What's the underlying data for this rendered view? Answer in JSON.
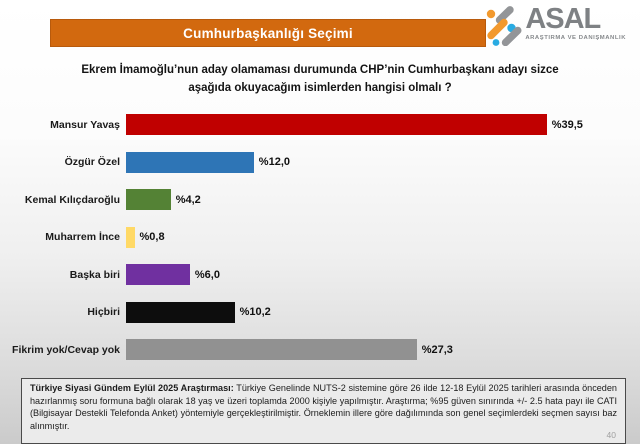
{
  "banner": {
    "title": "Cumhurbaşkanlığı Seçimi",
    "bg_color": "#d2690f"
  },
  "logo": {
    "name": "ASAL",
    "subtitle": "ARAŞTIRMA VE DANIŞMANLIK",
    "gray": "#7e8184",
    "orange": "#f2992e",
    "blue": "#29abe2"
  },
  "question": {
    "line1": "Ekrem İmamoğlu’nun aday olamaması durumunda CHP’nin Cumhurbaşkanı adayı sizce",
    "line2": "aşağıda okuyacağım isimlerden hangisi olmalı ?"
  },
  "chart_data": {
    "type": "bar",
    "orientation": "horizontal",
    "categories": [
      "Mansur Yavaş",
      "Özgür Özel",
      "Kemal Kılıçdaroğlu",
      "Muharrem İnce",
      "Başka biri",
      "Hiçbiri",
      "Fikrim yok/Cevap yok"
    ],
    "values": [
      39.5,
      12.0,
      4.2,
      0.8,
      6.0,
      10.2,
      27.3
    ],
    "value_labels": [
      "%39,5",
      "%12,0",
      "%4,2",
      "%0,8",
      "%6,0",
      "%10,2",
      "%27,3"
    ],
    "colors": [
      "#c00000",
      "#2e75b6",
      "#548235",
      "#ffd966",
      "#7030a0",
      "#0d0d0d",
      "#919191"
    ],
    "title": "",
    "xlabel": "",
    "ylabel": "",
    "xlim": [
      0,
      41
    ],
    "grid": false,
    "legend": false
  },
  "footnote": {
    "bold_label": "Türkiye Siyasi Gündem Eylül 2025 Araştırması:",
    "text": " Türkiye Genelinde NUTS-2 sistemine göre 26 ilde 12-18 Eylül 2025 tarihleri arasında önceden hazırlanmış soru formuna bağlı olarak 18 yaş ve üzeri toplamda 2000 kişiyle yapılmıştır. Araştırma; %95 güven sınırında +/- 2.5 hata payı ile CATI (Bilgisayar Destekli Telefonda Anket) yöntemiyle gerçekleştirilmiştir. Örneklemin illere göre dağılımında son genel seçimlerdeki seçmen sayısı baz alınmıştır.",
    "page_number": "40"
  }
}
